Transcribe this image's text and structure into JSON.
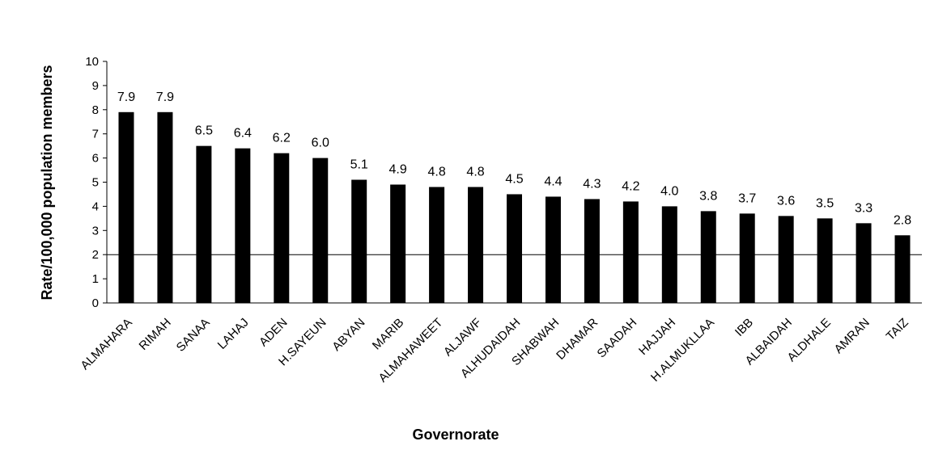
{
  "chart_data": {
    "type": "bar",
    "title": "",
    "xlabel": "Governorate",
    "ylabel": "Rate/100,000 population members",
    "ylim": [
      0,
      10
    ],
    "yticks": [
      0,
      1,
      2,
      3,
      4,
      5,
      6,
      7,
      8,
      9,
      10
    ],
    "grid": false,
    "bar_color": "#000000",
    "reference_line": {
      "y": 2
    },
    "categories": [
      "ALMAHARA",
      "RIMAH",
      "SANAA",
      "LAHAJ",
      "ADEN",
      "H.SAYEUN",
      "ABYAN",
      "MARIB",
      "ALMAHAWEET",
      "ALJAWF",
      "ALHUDAIDAH",
      "SHABWAH",
      "DHAMAR",
      "SAADAH",
      "HAJJAH",
      "H.ALMUKLLAA",
      "IBB",
      "ALBAIDAH",
      "ALDHALE",
      "AMRAN",
      "TAIZ"
    ],
    "values": [
      7.9,
      7.9,
      6.5,
      6.4,
      6.2,
      6.0,
      5.1,
      4.9,
      4.8,
      4.8,
      4.5,
      4.4,
      4.3,
      4.2,
      4.0,
      3.8,
      3.7,
      3.6,
      3.5,
      3.3,
      2.8
    ],
    "data_labels": [
      "7.9",
      "7.9",
      "6.5",
      "6.4",
      "6.2",
      "6.0",
      "5.1",
      "4.9",
      "4.8",
      "4.8",
      "4.5",
      "4.4",
      "4.3",
      "4.2",
      "4.0",
      "3.8",
      "3.7",
      "3.6",
      "3.5",
      "3.3",
      "2.8"
    ]
  }
}
